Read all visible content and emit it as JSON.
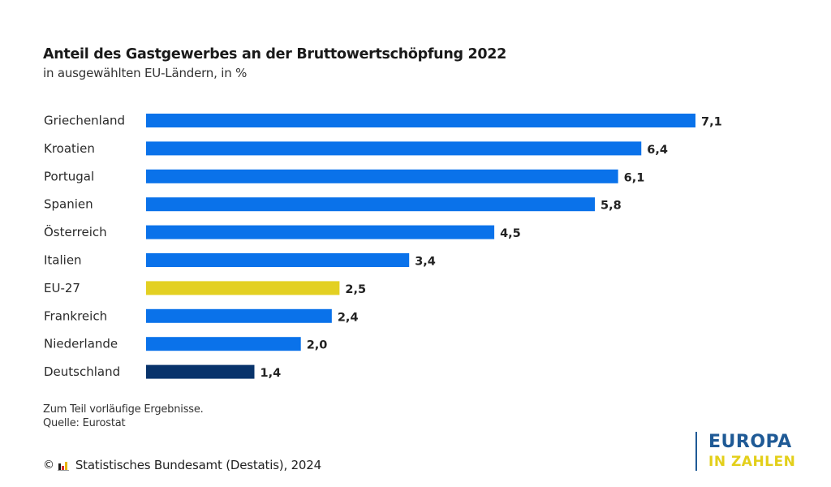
{
  "header": {
    "title": "Anteil des Gastgewerbes an der Bruttowertschöpfung 2022",
    "subtitle": "in ausgewählten EU-Ländern, in %"
  },
  "chart_data": {
    "type": "bar",
    "orientation": "horizontal",
    "title": "Anteil des Gastgewerbes an der Bruttowertschöpfung 2022",
    "subtitle": "in ausgewählten EU-Ländern, in %",
    "xlabel": "",
    "ylabel": "",
    "grid": false,
    "categories": [
      "Griechenland",
      "Kroatien",
      "Portugal",
      "Spanien",
      "Österreich",
      "Italien",
      "EU-27",
      "Frankreich",
      "Niederlande",
      "Deutschland"
    ],
    "values": [
      7.1,
      6.4,
      6.1,
      5.8,
      4.5,
      3.4,
      2.5,
      2.4,
      2.0,
      1.4
    ],
    "value_labels": [
      "7,1",
      "6,4",
      "6,1",
      "5,8",
      "4,5",
      "3,4",
      "2,5",
      "2,4",
      "2,0",
      "1,4"
    ],
    "bar_colors": [
      "#0a72ea",
      "#0a72ea",
      "#0a72ea",
      "#0a72ea",
      "#0a72ea",
      "#0a72ea",
      "#e3d022",
      "#0a72ea",
      "#0a72ea",
      "#08336b"
    ],
    "xlim": [
      0,
      7.1
    ]
  },
  "colors": {
    "country": "#0a72ea",
    "eu_average": "#e3d022",
    "germany": "#08336b"
  },
  "footer": {
    "note": "Zum Teil vorläufige Ergebnisse.",
    "source": "Quelle: Eurostat",
    "copyright_symbol": "©",
    "copyright_text": "Statistisches Bundesamt (Destatis), 2024"
  },
  "brand": {
    "line1": "EUROPA",
    "line2": "IN ZAHLEN"
  }
}
